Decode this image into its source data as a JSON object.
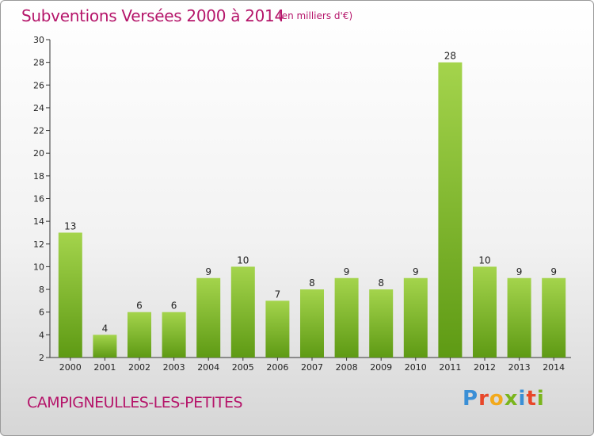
{
  "header": {
    "title": "Subventions Versées 2000 à 2014",
    "unit_note": "(en milliers d'€)"
  },
  "footer": {
    "commune": "CAMPIGNEULLES-LES-PETITES",
    "brand": "Proxiti"
  },
  "colors": {
    "title": "#b5156a",
    "bar_light": "#a4d44c",
    "bar_dark": "#5e9a14",
    "brand_letters": [
      "#3a8fd6",
      "#e8472a",
      "#f2a91c",
      "#7ab51d",
      "#3a8fd6",
      "#e8472a",
      "#7ab51d"
    ]
  },
  "chart_data": {
    "type": "bar",
    "title": "Subventions Versées 2000 à 2014",
    "subtitle": "(en milliers d'€)",
    "xlabel": "",
    "ylabel": "",
    "categories": [
      "2000",
      "2001",
      "2002",
      "2003",
      "2004",
      "2005",
      "2006",
      "2007",
      "2008",
      "2009",
      "2010",
      "2011",
      "2012",
      "2013",
      "2014"
    ],
    "values": [
      13,
      4,
      6,
      6,
      9,
      10,
      7,
      8,
      9,
      8,
      9,
      28,
      10,
      9,
      9
    ],
    "ylim": [
      2,
      30
    ],
    "yticks": [
      2,
      4,
      6,
      8,
      10,
      12,
      14,
      16,
      18,
      20,
      22,
      24,
      26,
      28,
      30
    ],
    "grid": false,
    "legend": "none"
  }
}
